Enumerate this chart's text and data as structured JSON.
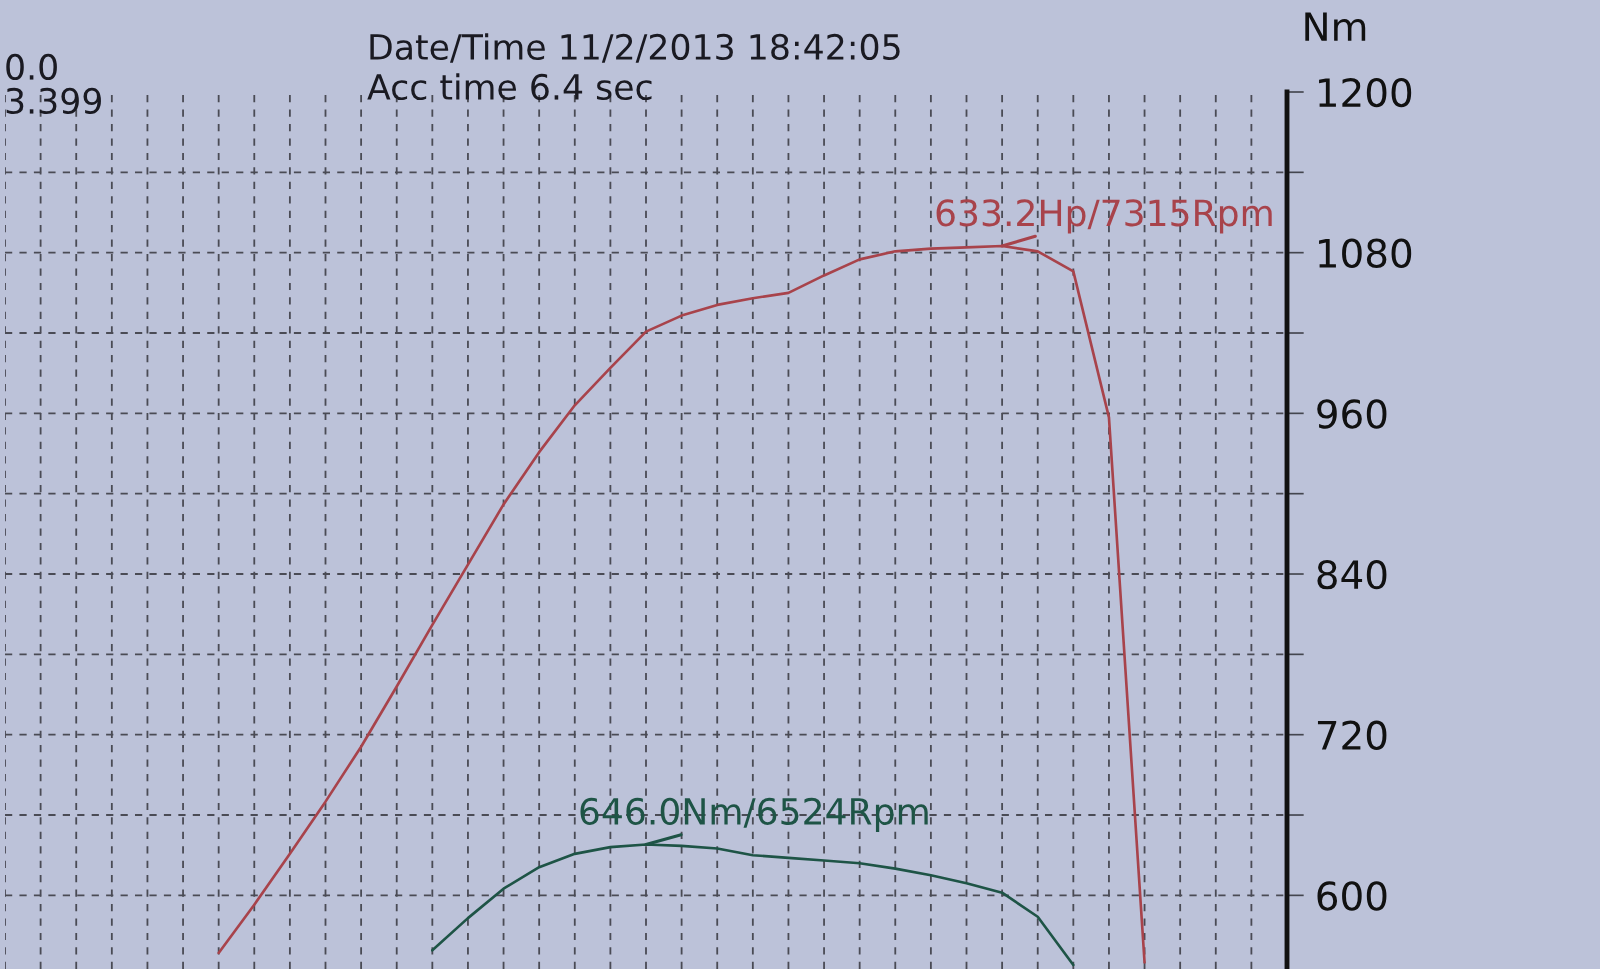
{
  "chart_data": {
    "type": "line",
    "annotations": [
      "0.0",
      "3.399",
      "Date/Time 11/2/2013 18:42:05",
      "Acc time 6.4 sec",
      "633.2Hp/7315Rpm",
      "646.0Nm/6524Rpm"
    ],
    "ylabel": "Nm",
    "categories": [
      null,
      null,
      null,
      null,
      null,
      null,
      null,
      null,
      null,
      null,
      null,
      null,
      null,
      null,
      null,
      null,
      null,
      null,
      null,
      null,
      null,
      null,
      null,
      null,
      null,
      null,
      null,
      null,
      null,
      null,
      null,
      null,
      null,
      null,
      null,
      null,
      null
    ],
    "series": [
      {
        "color": "#a8434b",
        "values": [
          null,
          null,
          null,
          null,
          null,
          null,
          557,
          593,
          631,
          670,
          711,
          756,
          802,
          847,
          892,
          931,
          966,
          994,
          1021,
          1033,
          1041,
          1046,
          1050,
          1063,
          1075,
          1081,
          1083,
          1084,
          1085,
          1081,
          1066,
          957,
          550,
          null,
          null,
          null,
          null
        ]
      },
      {
        "color": "#1e5446",
        "values": [
          null,
          null,
          null,
          null,
          null,
          null,
          null,
          null,
          null,
          null,
          null,
          null,
          559,
          583,
          605,
          621,
          631,
          636,
          638,
          637,
          635,
          630,
          628,
          626,
          624,
          620,
          615,
          609,
          602,
          584,
          548,
          null,
          null,
          null,
          null,
          null,
          null
        ]
      }
    ],
    "ylim": [
      545,
      1200
    ],
    "yticks": [
      600,
      {
        "value": 660,
        "label": null
      },
      720,
      {
        "value": 780,
        "label": null
      },
      840,
      {
        "value": 900,
        "label": null
      },
      960,
      {
        "value": 1020,
        "label": null
      },
      1080,
      {
        "value": 1140,
        "label": null
      },
      1200
    ],
    "grid": true,
    "tick_labels": "y"
  }
}
